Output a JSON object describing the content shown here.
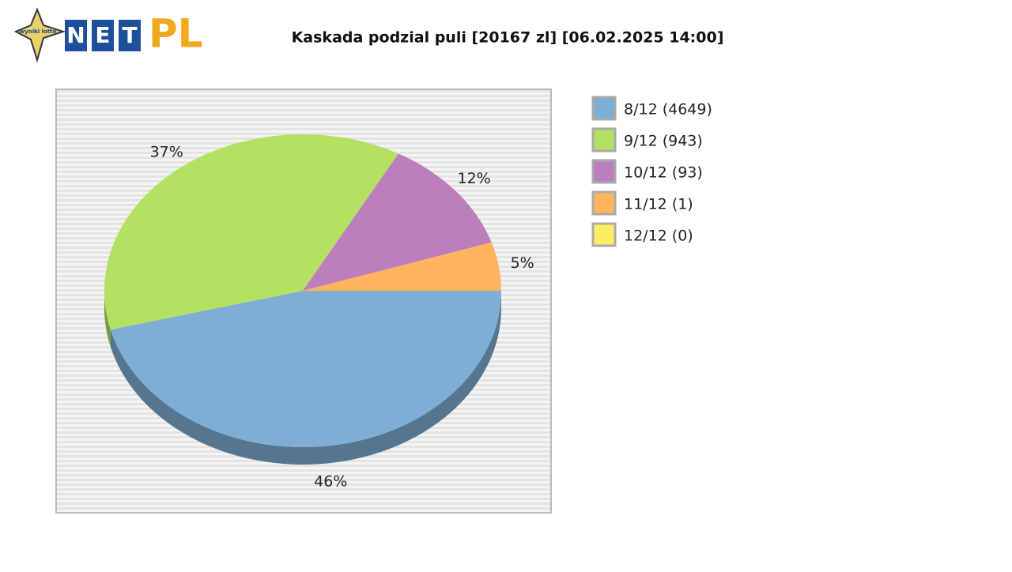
{
  "logo": {
    "star": "wyniki lotto",
    "letters": [
      "N",
      "E",
      "T"
    ],
    "pl": "PL"
  },
  "chart_data": {
    "type": "pie",
    "title": "Kaskada podzial puli [20167 zl] [06.02.2025 14:00]",
    "categories": [
      "8/12 (4649)",
      "9/12 (943)",
      "10/12 (93)",
      "11/12 (1)",
      "12/12 (0)"
    ],
    "values": [
      46,
      37,
      12,
      5,
      0
    ],
    "value_labels": [
      "46%",
      "37%",
      "12%",
      "5%",
      null
    ],
    "colors": [
      "#7eaed4",
      "#b4e162",
      "#bc7ebc",
      "#feb45c",
      "#feec62"
    ],
    "legend": "right"
  }
}
